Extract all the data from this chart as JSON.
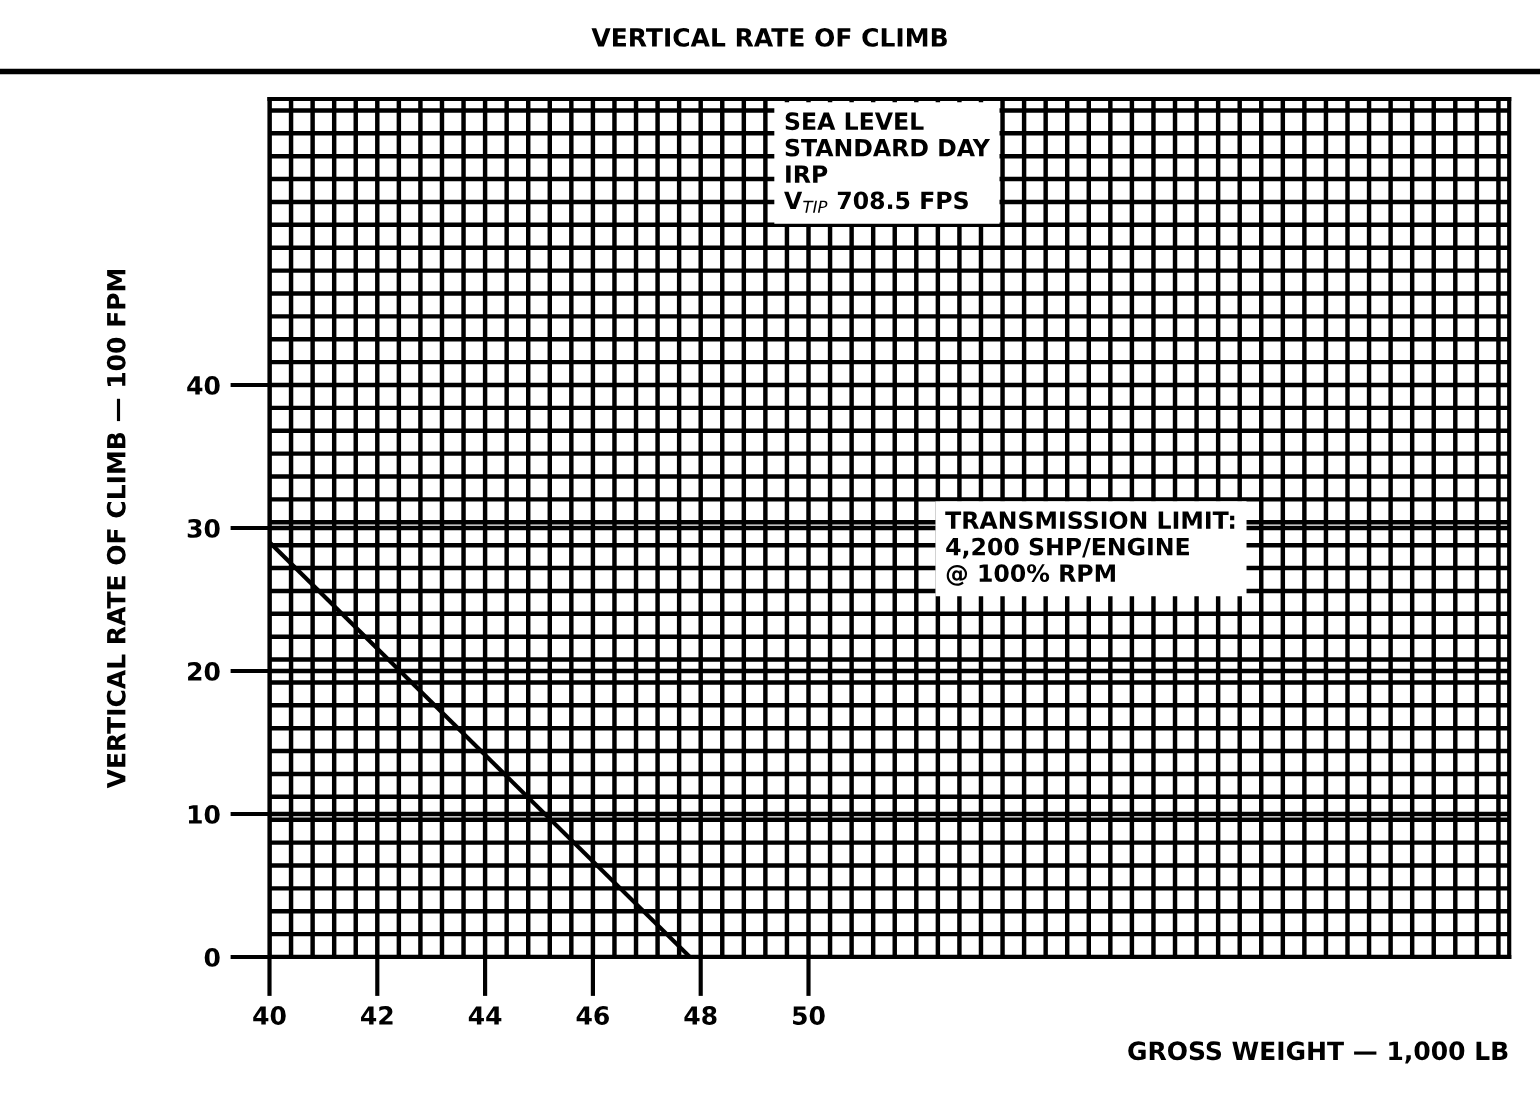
{
  "chart_data": {
    "type": "line",
    "title": "VERTICAL RATE OF CLIMB",
    "xlabel": "GROSS WEIGHT — 1,000 LB",
    "ylabel": "VERTICAL RATE OF CLIMB — 100 FPM",
    "x": [
      40,
      47.8
    ],
    "series": [
      {
        "color": "#000000",
        "values": [
          29,
          0
        ]
      }
    ],
    "xlim": [
      40,
      63
    ],
    "ylim": [
      0,
      60
    ],
    "xticks": [
      40,
      42,
      44,
      46,
      48,
      50
    ],
    "yticks": [
      0,
      10,
      20,
      30,
      40
    ],
    "grid": true,
    "line_style": "solid",
    "marker": "none",
    "annotations": [
      "SEA LEVEL\nSTANDARD DAY\nIRP\nV$_{TIP}$ 708.5 FPS",
      "TRANSMISSION LIMIT:\n4,200 SHP/ENGINE\n@ 100% RPM"
    ]
  }
}
